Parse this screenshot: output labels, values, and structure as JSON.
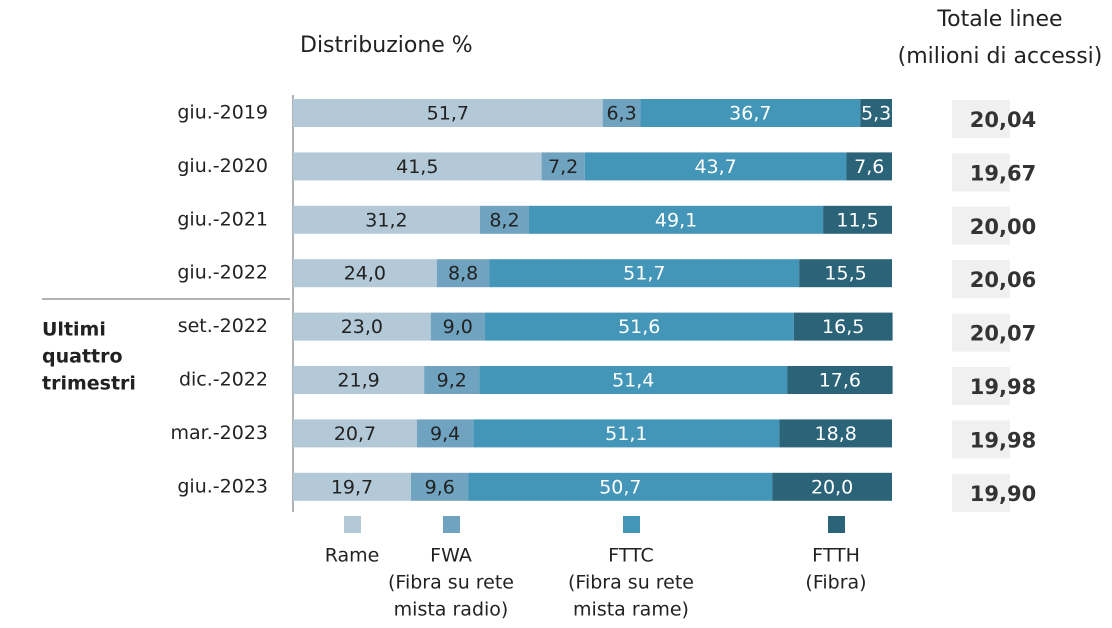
{
  "chart_data": {
    "type": "bar",
    "orientation": "horizontal",
    "stacked": true,
    "subtitle": "Distribuzione %",
    "categories": [
      "giu.-2019",
      "giu.-2020",
      "giu.-2021",
      "giu.-2022",
      "set.-2022",
      "dic.-2022",
      "mar.-2023",
      "giu.-2023"
    ],
    "group_label": [
      "Ultimi",
      "quattro",
      "trimestri"
    ],
    "xlim": [
      0,
      100
    ],
    "series": [
      {
        "name": "Rame",
        "note": [],
        "color": "#b3c9d8",
        "label_color": "#222222",
        "values": [
          51.7,
          41.5,
          31.2,
          24.0,
          23.0,
          21.9,
          20.7,
          19.7
        ],
        "value_labels": [
          "51,7",
          "41,5",
          "31,2",
          "24,0",
          "23,0",
          "21,9",
          "20,7",
          "19,7"
        ]
      },
      {
        "name": "FWA",
        "note": [
          "(Fibra su rete",
          "mista radio)"
        ],
        "color": "#6fa3c0",
        "label_color": "#222222",
        "values": [
          6.3,
          7.2,
          8.2,
          8.8,
          9.0,
          9.2,
          9.4,
          9.6
        ],
        "value_labels": [
          "6,3",
          "7,2",
          "8,2",
          "8,8",
          "9,0",
          "9,2",
          "9,4",
          "9,6"
        ]
      },
      {
        "name": "FTTC",
        "note": [
          "(Fibra su rete",
          "mista rame)"
        ],
        "color": "#4496b8",
        "label_color": "#ffffff",
        "values": [
          36.7,
          43.7,
          49.1,
          51.7,
          51.6,
          51.4,
          51.1,
          50.7
        ],
        "value_labels": [
          "36,7",
          "43,7",
          "49,1",
          "51,7",
          "51,6",
          "51,4",
          "51,1",
          "50,7"
        ]
      },
      {
        "name": "FTTH",
        "note": [
          "(Fibra)"
        ],
        "color": "#2b6378",
        "label_color": "#ffffff",
        "values": [
          5.3,
          7.6,
          11.5,
          15.5,
          16.5,
          17.6,
          18.8,
          20.0
        ],
        "value_labels": [
          "5,3",
          "7,6",
          "11,5",
          "15,5",
          "16,5",
          "17,6",
          "18,8",
          "20,0"
        ]
      }
    ],
    "totals": {
      "title": [
        "Totale linee",
        "(milioni di accessi)"
      ],
      "values": [
        20.04,
        19.67,
        20.0,
        20.06,
        20.07,
        19.98,
        19.98,
        19.9
      ],
      "value_labels": [
        "20,04",
        "19,67",
        "20,00",
        "20,06",
        "20,07",
        "19,98",
        "19,98",
        "19,90"
      ]
    }
  }
}
